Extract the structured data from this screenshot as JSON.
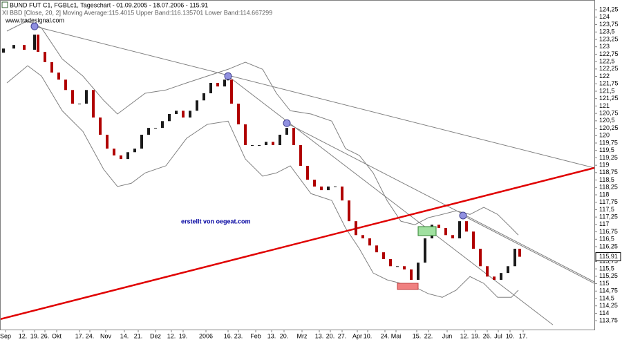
{
  "chart_data": {
    "type": "candlestick",
    "title": "BUND FUT C1, FGBLc1, Tageschart - 01.09.2005 - 18.07.2006 - 115.91",
    "subtitle": "www.tradesignal.com",
    "indicator_label": "XI BBD [Close, 20, 2] Moving Average:115.4015 Upper Band:116.135701 Lower Band:114.667299",
    "annotation": "erstellt von oegeat.com",
    "last_price": {
      "value": 115.91,
      "label": "115,91"
    },
    "up_color": "#1a1a1a",
    "down_color": "#b00000",
    "xlim": [
      0,
      258
    ],
    "ylim": [
      113.45,
      124.58
    ],
    "x": [
      1.5,
      6,
      10.5,
      15,
      16.5,
      19.5,
      22.5,
      25.5,
      28.5,
      31.5,
      34.5,
      37.5,
      40.5,
      43.5,
      46.5,
      49.5,
      52.5,
      55.5,
      58.5,
      61.5,
      64.5,
      67.5,
      70.5,
      73.5,
      76.5,
      79.5,
      82.5,
      85.5,
      88.5,
      91.5,
      94.5,
      97.5,
      99,
      100.5,
      103.5,
      106.5,
      109.5,
      112.5,
      115.5,
      118.5,
      121.5,
      124.5,
      127.5,
      130.5,
      133.5,
      136.5,
      139.5,
      142.5,
      145.5,
      148.5,
      151.5,
      154.5,
      157.5,
      160.5,
      163.5,
      166.5,
      169.5,
      172.5,
      175.5,
      178.5,
      181.5,
      184.5,
      187.5,
      190.5,
      193.5,
      196.5,
      199.5,
      202.5,
      205.5,
      208.5,
      211.5,
      214.5,
      217.5,
      220.5,
      223.5,
      225.6
    ],
    "open": [
      122.8,
      122.94,
      123.06,
      122.9,
      123.41,
      122.83,
      122.48,
      122.13,
      121.89,
      121.54,
      121.08,
      121.08,
      121.54,
      120.61,
      120.03,
      119.56,
      119.33,
      119.21,
      119.44,
      119.56,
      120.03,
      120.26,
      120.26,
      120.49,
      120.73,
      120.84,
      120.61,
      120.84,
      121.19,
      121.43,
      121.78,
      121.66,
      121.89,
      121.89,
      121.08,
      120.38,
      119.68,
      119.68,
      119.68,
      119.79,
      119.68,
      120.03,
      120.26,
      119.68,
      118.98,
      118.51,
      118.28,
      118.16,
      118.28,
      118.28,
      117.81,
      117.11,
      116.64,
      116.53,
      116.29,
      116.06,
      115.83,
      115.59,
      115.59,
      115.48,
      115.13,
      115.71,
      116.53,
      116.99,
      116.88,
      116.64,
      116.53,
      117.11,
      116.76,
      116.18,
      115.59,
      115.24,
      115.13,
      115.36,
      115.59,
      116.18
    ],
    "close": [
      122.94,
      123.06,
      122.9,
      123.41,
      122.83,
      122.48,
      122.13,
      121.89,
      121.54,
      121.08,
      121.08,
      121.54,
      120.61,
      120.03,
      119.56,
      119.33,
      119.21,
      119.44,
      119.56,
      120.03,
      120.26,
      120.26,
      120.49,
      120.73,
      120.84,
      120.61,
      120.84,
      121.19,
      121.43,
      121.78,
      121.66,
      121.89,
      121.89,
      121.08,
      120.38,
      119.68,
      119.68,
      119.68,
      119.79,
      119.68,
      120.03,
      120.26,
      119.68,
      118.98,
      118.51,
      118.28,
      118.16,
      118.28,
      118.28,
      117.81,
      117.11,
      116.64,
      116.53,
      116.29,
      116.06,
      115.83,
      115.59,
      115.59,
      115.48,
      115.13,
      115.71,
      116.53,
      116.99,
      116.88,
      116.64,
      116.53,
      117.11,
      116.76,
      116.18,
      115.59,
      115.24,
      115.13,
      115.36,
      115.59,
      116.18,
      115.91
    ],
    "bands": {
      "color": "#808080",
      "x": [
        3,
        12,
        18,
        27,
        36,
        45,
        51,
        57,
        63,
        72,
        81,
        90,
        99,
        106.5,
        114,
        120,
        126,
        135,
        144,
        150,
        156,
        162,
        168,
        174,
        180,
        186,
        192,
        198,
        204,
        210,
        216,
        222,
        225
      ],
      "upper": [
        123.53,
        123.88,
        123.64,
        122.59,
        122.01,
        121.19,
        120.73,
        121.08,
        121.43,
        121.54,
        121.78,
        122.01,
        122.24,
        122.48,
        122.24,
        121.43,
        120.84,
        120.73,
        120.49,
        119.56,
        119.33,
        118.74,
        117.81,
        117.11,
        116.99,
        117.23,
        117.34,
        117.46,
        117.34,
        117.58,
        117.34,
        116.88,
        116.64
      ],
      "lower": [
        121.78,
        122.36,
        122.01,
        120.84,
        120.14,
        118.86,
        118.28,
        118.39,
        118.74,
        118.98,
        119.91,
        120.38,
        120.49,
        119.21,
        118.63,
        118.74,
        118.98,
        118.04,
        117.81,
        116.88,
        116.18,
        115.36,
        115.13,
        115.01,
        114.89,
        114.66,
        114.54,
        114.78,
        115.24,
        115.01,
        114.54,
        114.54,
        114.78
      ]
    },
    "trendlines": [
      {
        "color": "#808080",
        "x": [
          15,
          258
        ],
        "y": [
          123.69,
          118.91
        ]
      },
      {
        "color": "#808080",
        "x": [
          99,
          240
        ],
        "y": [
          122.01,
          113.61
        ]
      },
      {
        "color": "#808080",
        "x": [
          124.5,
          258
        ],
        "y": [
          120.42,
          115.06
        ]
      },
      {
        "color": "#808080",
        "x": [
          201,
          258
        ],
        "y": [
          117.3,
          115.01
        ]
      },
      {
        "color": "#e00000",
        "x": [
          0,
          258
        ],
        "y": [
          113.8,
          118.91
        ]
      }
    ],
    "yticks": [
      {
        "value": 124.25,
        "label": "124,25"
      },
      124,
      {
        "value": 123.75,
        "label": "123,75"
      },
      {
        "value": 123.5,
        "label": "123,5"
      },
      {
        "value": 123.25,
        "label": "123,25"
      },
      123,
      {
        "value": 122.75,
        "label": "122,75"
      },
      {
        "value": 122.5,
        "label": "122,5"
      },
      {
        "value": 122.25,
        "label": "122,25"
      },
      122,
      {
        "value": 121.75,
        "label": "121,75"
      },
      {
        "value": 121.5,
        "label": "121,5"
      },
      {
        "value": 121.25,
        "label": "121,25"
      },
      121,
      {
        "value": 120.75,
        "label": "120,75"
      },
      {
        "value": 120.5,
        "label": "120,5"
      },
      {
        "value": 120.25,
        "label": "120,25"
      },
      120,
      {
        "value": 119.75,
        "label": "119,75"
      },
      {
        "value": 119.5,
        "label": "119,5"
      },
      {
        "value": 119.25,
        "label": "119,25"
      },
      119,
      {
        "value": 118.75,
        "label": "118,75"
      },
      {
        "value": 118.5,
        "label": "118,5"
      },
      {
        "value": 118.25,
        "label": "118,25"
      },
      118,
      {
        "value": 117.75,
        "label": "117,75"
      },
      {
        "value": 117.5,
        "label": "117,5"
      },
      {
        "value": 117.25,
        "label": "117,25"
      },
      117,
      {
        "value": 116.75,
        "label": "116,75"
      },
      {
        "value": 116.5,
        "label": "116,5"
      },
      {
        "value": 116.25,
        "label": "116,25"
      },
      {
        "value": 115.75,
        "label": "115,75"
      },
      {
        "value": 115.5,
        "label": "115,5"
      },
      {
        "value": 115.25,
        "label": "115,25"
      },
      115,
      {
        "value": 114.75,
        "label": "114,75"
      },
      {
        "value": 114.5,
        "label": "114,5"
      },
      {
        "value": 114.25,
        "label": "114,25"
      },
      114,
      {
        "value": 113.75,
        "label": "113,75"
      }
    ],
    "xticks": [
      {
        "value": 2.4,
        "label": "Sep"
      },
      {
        "value": 9.9,
        "label": "12."
      },
      {
        "value": 15,
        "label": "19."
      },
      {
        "value": 19.5,
        "label": "26."
      },
      {
        "value": 24.6,
        "label": "Okt"
      },
      {
        "value": 34.5,
        "label": "17."
      },
      {
        "value": 39,
        "label": "24."
      },
      {
        "value": 45.9,
        "label": "Nov"
      },
      {
        "value": 54,
        "label": "14."
      },
      {
        "value": 60,
        "label": "21."
      },
      {
        "value": 67.5,
        "label": "Dez"
      },
      {
        "value": 74.4,
        "label": "12."
      },
      {
        "value": 79.5,
        "label": "19."
      },
      {
        "value": 89.4,
        "label": "2006"
      },
      {
        "value": 99,
        "label": "16."
      },
      {
        "value": 103.5,
        "label": "23."
      },
      {
        "value": 111,
        "label": "Feb"
      },
      {
        "value": 117.9,
        "label": "13."
      },
      {
        "value": 123.3,
        "label": "20."
      },
      {
        "value": 131.1,
        "label": "Mrz"
      },
      {
        "value": 138.6,
        "label": "13."
      },
      {
        "value": 143.4,
        "label": "20."
      },
      {
        "value": 148.5,
        "label": "27."
      },
      {
        "value": 155.1,
        "label": "Apr"
      },
      {
        "value": 159.6,
        "label": "10."
      },
      {
        "value": 167.1,
        "label": "24."
      },
      {
        "value": 171.9,
        "label": "Mai"
      },
      {
        "value": 180.9,
        "label": "15."
      },
      {
        "value": 186,
        "label": "22."
      },
      {
        "value": 194.1,
        "label": "Jun"
      },
      {
        "value": 201.6,
        "label": "12."
      },
      {
        "value": 206.4,
        "label": "19."
      },
      {
        "value": 211.5,
        "label": "26."
      },
      {
        "value": 216.3,
        "label": "Jul"
      },
      {
        "value": 221.4,
        "label": "10."
      },
      {
        "value": 227.1,
        "label": "17."
      }
    ]
  }
}
